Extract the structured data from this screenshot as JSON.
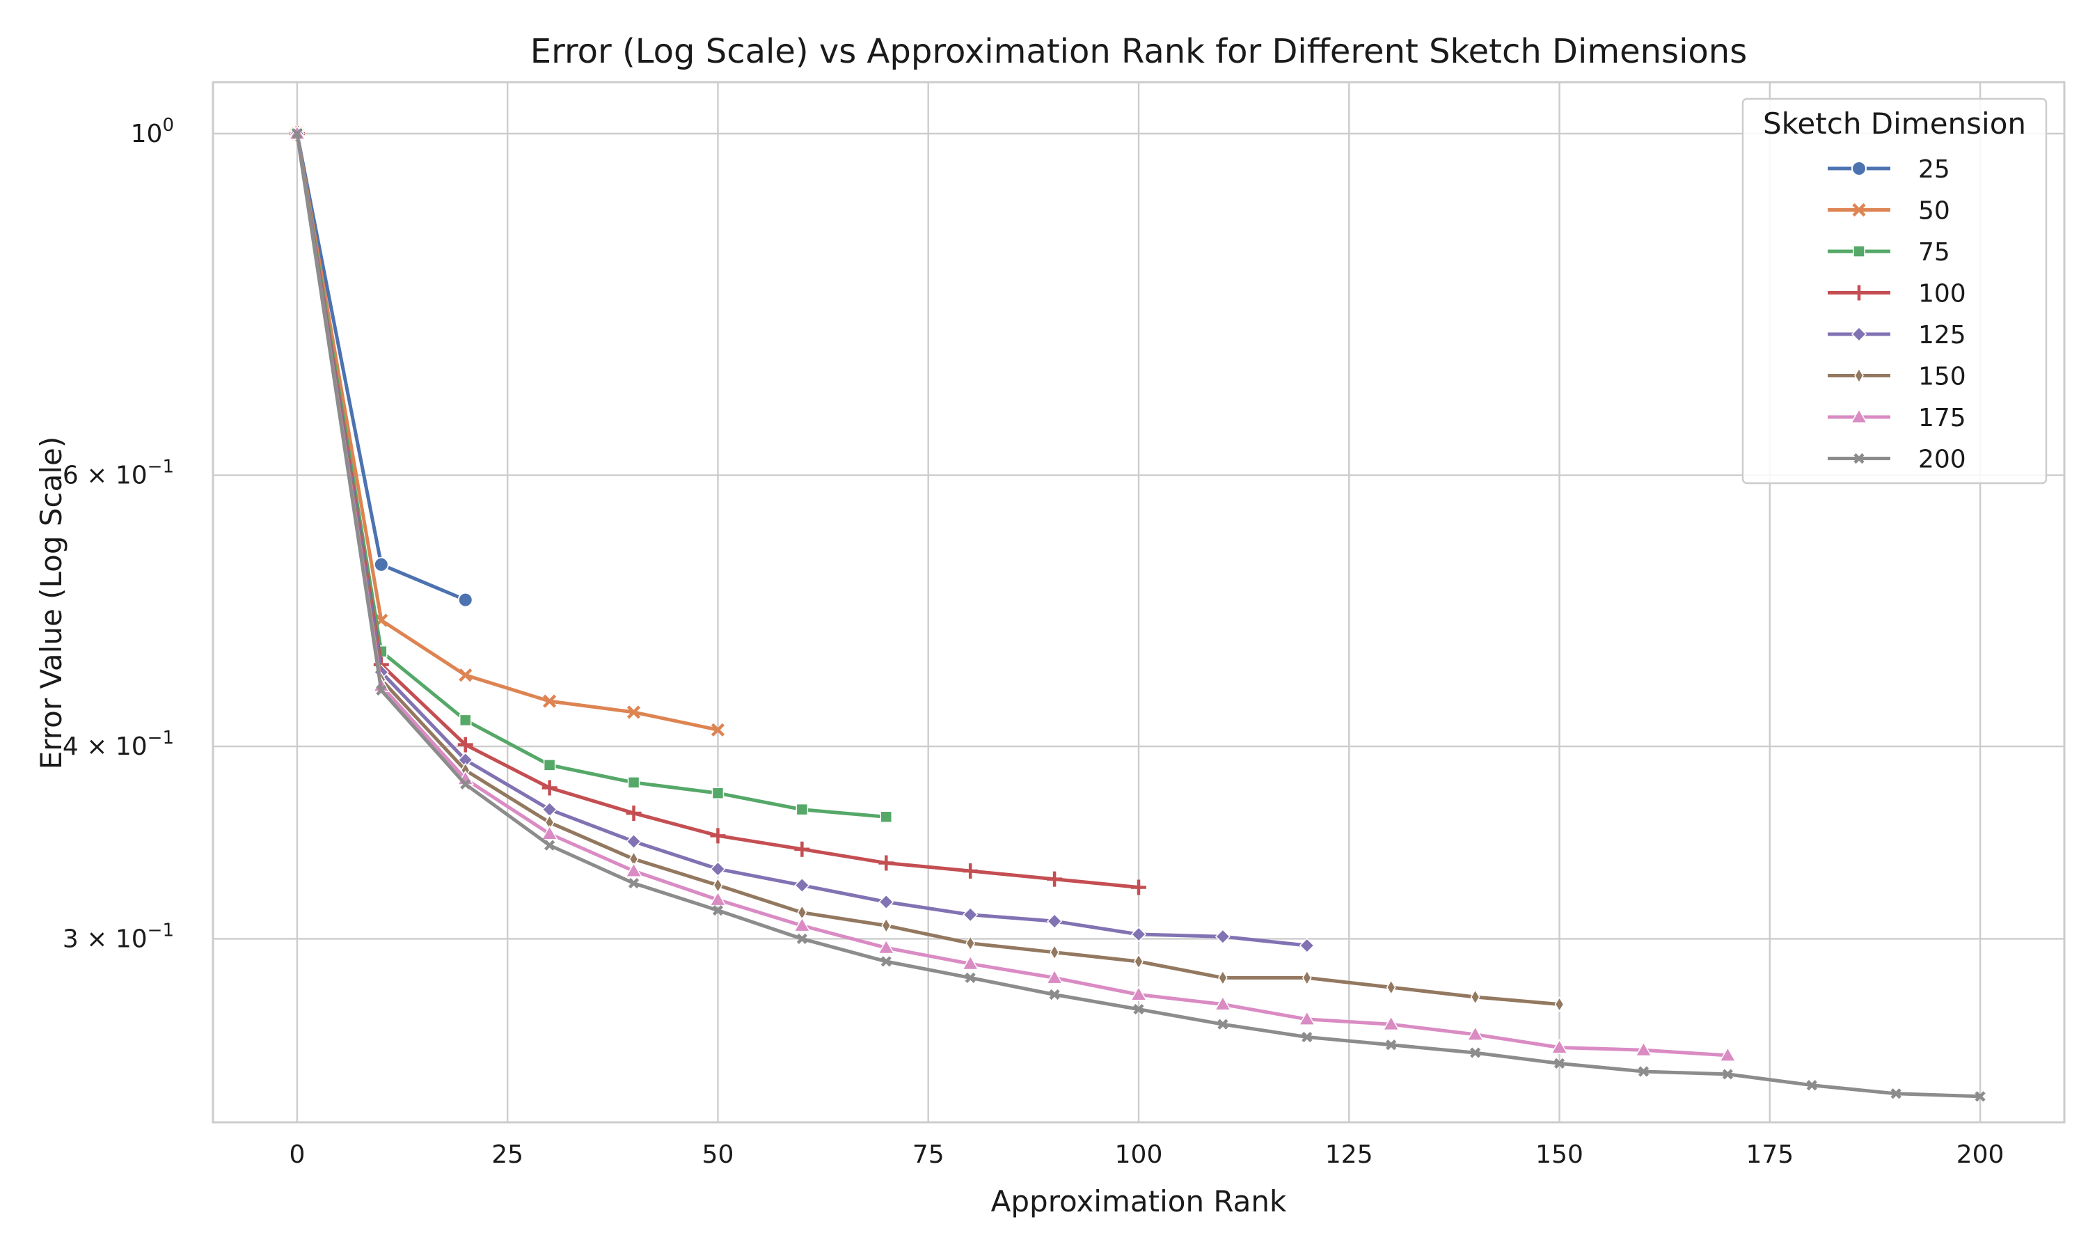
{
  "chart_data": {
    "type": "line",
    "title": "Error (Log Scale) vs Approximation Rank for Different Sketch Dimensions",
    "xlabel": "Approximation Rank",
    "ylabel": "Error Value (Log Scale)",
    "xlim": [
      -10,
      210
    ],
    "ylim": [
      0.228,
      1.08
    ],
    "yscale": "log",
    "grid": true,
    "x_ticks": [
      0,
      25,
      50,
      75,
      100,
      125,
      150,
      175,
      200
    ],
    "x_tick_labels": [
      "0",
      "25",
      "50",
      "75",
      "100",
      "125",
      "150",
      "175",
      "200"
    ],
    "y_ticks": [
      {
        "value": 1.0,
        "base": "10",
        "exp": "0"
      },
      {
        "value": 0.6,
        "base": "6 × 10",
        "exp": "−1"
      },
      {
        "value": 0.4,
        "base": "4 × 10",
        "exp": "−1"
      },
      {
        "value": 0.3,
        "base": "3 × 10",
        "exp": "−1"
      }
    ],
    "legend": {
      "title": "Sketch Dimension",
      "position": "top-right"
    },
    "series": [
      {
        "name": "25",
        "color": "#4c72b0",
        "marker": "circle",
        "x": [
          0,
          10,
          20
        ],
        "y": [
          1.0,
          0.525,
          0.498
        ]
      },
      {
        "name": "50",
        "color": "#dd8452",
        "marker": "x",
        "x": [
          0,
          10,
          20,
          30,
          40,
          50
        ],
        "y": [
          1.0,
          0.483,
          0.445,
          0.428,
          0.421,
          0.41
        ]
      },
      {
        "name": "75",
        "color": "#55a868",
        "marker": "square",
        "x": [
          0,
          10,
          20,
          30,
          40,
          50,
          60,
          70
        ],
        "y": [
          1.0,
          0.461,
          0.416,
          0.389,
          0.379,
          0.373,
          0.364,
          0.36
        ]
      },
      {
        "name": "100",
        "color": "#c44e52",
        "marker": "plus",
        "x": [
          0,
          10,
          20,
          30,
          40,
          50,
          60,
          70,
          80,
          90,
          100
        ],
        "y": [
          1.0,
          0.452,
          0.401,
          0.376,
          0.362,
          0.35,
          0.343,
          0.336,
          0.332,
          0.328,
          0.324
        ]
      },
      {
        "name": "125",
        "color": "#8172b3",
        "marker": "diamond",
        "x": [
          0,
          10,
          20,
          30,
          40,
          50,
          60,
          70,
          80,
          90,
          100,
          110,
          120
        ],
        "y": [
          1.0,
          0.447,
          0.392,
          0.364,
          0.347,
          0.333,
          0.325,
          0.317,
          0.311,
          0.308,
          0.302,
          0.301,
          0.297
        ]
      },
      {
        "name": "150",
        "color": "#937860",
        "marker": "thin-diamond",
        "x": [
          0,
          10,
          20,
          30,
          40,
          50,
          60,
          70,
          80,
          90,
          100,
          110,
          120,
          130,
          140,
          150
        ],
        "y": [
          1.0,
          0.442,
          0.386,
          0.357,
          0.338,
          0.325,
          0.312,
          0.306,
          0.298,
          0.294,
          0.29,
          0.283,
          0.283,
          0.279,
          0.275,
          0.272
        ]
      },
      {
        "name": "175",
        "color": "#da8bc3",
        "marker": "triangle",
        "x": [
          0,
          10,
          20,
          30,
          40,
          50,
          60,
          70,
          80,
          90,
          100,
          110,
          120,
          130,
          140,
          150,
          160,
          170
        ],
        "y": [
          1.0,
          0.438,
          0.381,
          0.351,
          0.332,
          0.318,
          0.306,
          0.296,
          0.289,
          0.283,
          0.276,
          0.272,
          0.266,
          0.264,
          0.26,
          0.255,
          0.254,
          0.252
        ]
      },
      {
        "name": "200",
        "color": "#8c8c8c",
        "marker": "x-small",
        "x": [
          0,
          10,
          20,
          30,
          40,
          50,
          60,
          70,
          80,
          90,
          100,
          110,
          120,
          130,
          140,
          150,
          160,
          170,
          180,
          190,
          200
        ],
        "y": [
          1.0,
          0.435,
          0.378,
          0.345,
          0.326,
          0.313,
          0.3,
          0.29,
          0.283,
          0.276,
          0.27,
          0.264,
          0.259,
          0.256,
          0.253,
          0.249,
          0.246,
          0.245,
          0.241,
          0.238,
          0.237
        ]
      }
    ]
  }
}
